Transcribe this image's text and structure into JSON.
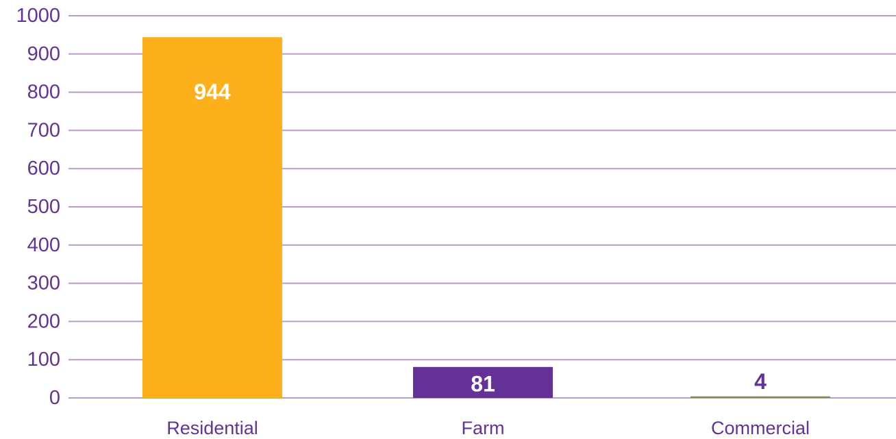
{
  "chart_data": {
    "type": "bar",
    "categories": [
      "Residential",
      "Farm",
      "Commercial"
    ],
    "values": [
      944,
      81,
      4
    ],
    "data_labels": [
      "944",
      "81",
      "4"
    ],
    "y_ticks": [
      "0",
      "100",
      "200",
      "300",
      "400",
      "500",
      "600",
      "700",
      "800",
      "900",
      "1000"
    ],
    "ylim": [
      0,
      1000
    ],
    "grid": true,
    "legend": "none",
    "colors": {
      "bars": [
        "#FCB11C",
        "#643296",
        "#7C8C5A"
      ],
      "grid": "#B89ACB",
      "axis_text": "#643296",
      "data_label_inside": "#FFFFFF",
      "data_label_outside": "#643296"
    }
  }
}
